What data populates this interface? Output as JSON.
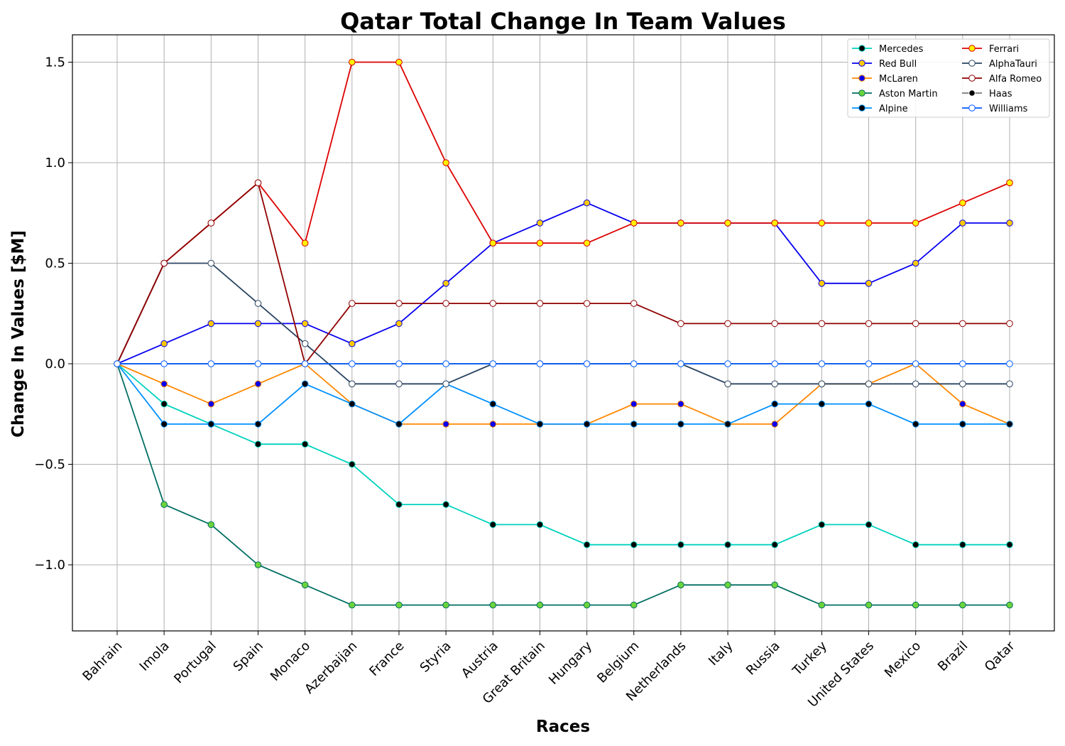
{
  "chart_data": {
    "type": "line",
    "title": "Qatar Total Change In Team Values",
    "xlabel": "Races",
    "ylabel": "Change In Values [$M]",
    "ylim": [
      -1.32,
      1.63
    ],
    "yticks": [
      -1.0,
      -0.5,
      0.0,
      0.5,
      1.0,
      1.5
    ],
    "ytick_labels": [
      "−1.0",
      "−0.5",
      "0.0",
      "0.5",
      "1.0",
      "1.5"
    ],
    "grid": true,
    "legend_position": "top-right",
    "categories": [
      "Bahrain",
      "Imola",
      "Portugal",
      "Spain",
      "Monaco",
      "Azerbaijan",
      "France",
      "Styria",
      "Austria",
      "Great Britain",
      "Hungary",
      "Belgium",
      "Netherlands",
      "Italy",
      "Russia",
      "Turkey",
      "United States",
      "Mexico",
      "Brazil",
      "Qatar"
    ],
    "series": [
      {
        "name": "Mercedes",
        "color": "#00d2be",
        "marker_fill": "#000000",
        "marker_edge": "#00d2be",
        "values": [
          0,
          -0.2,
          -0.3,
          -0.4,
          -0.4,
          -0.5,
          -0.7,
          -0.7,
          -0.8,
          -0.8,
          -0.9,
          -0.9,
          -0.9,
          -0.9,
          -0.9,
          -0.8,
          -0.8,
          -0.9,
          -0.9,
          -0.9
        ]
      },
      {
        "name": "Red Bull",
        "color": "#0600ef",
        "marker_fill": "#ffc906",
        "marker_edge": "#0600ef",
        "values": [
          0,
          0.1,
          0.2,
          0.2,
          0.2,
          0.1,
          0.2,
          0.4,
          0.6,
          0.7,
          0.8,
          0.7,
          0.7,
          0.7,
          0.7,
          0.4,
          0.4,
          0.5,
          0.7,
          0.7
        ]
      },
      {
        "name": "McLaren",
        "color": "#ff8700",
        "marker_fill": "#0600ef",
        "marker_edge": "#ff8700",
        "values": [
          0,
          -0.1,
          -0.2,
          -0.1,
          0.0,
          -0.2,
          -0.3,
          -0.3,
          -0.3,
          -0.3,
          -0.3,
          -0.2,
          -0.2,
          -0.3,
          -0.3,
          -0.1,
          -0.1,
          0.0,
          -0.2,
          -0.3
        ]
      },
      {
        "name": "Aston Martin",
        "color": "#006f62",
        "marker_fill": "#6cd33b",
        "marker_edge": "#006f62",
        "values": [
          0,
          -0.7,
          -0.8,
          -1.0,
          -1.1,
          -1.2,
          -1.2,
          -1.2,
          -1.2,
          -1.2,
          -1.2,
          -1.2,
          -1.1,
          -1.1,
          -1.1,
          -1.2,
          -1.2,
          -1.2,
          -1.2,
          -1.2
        ]
      },
      {
        "name": "Alpine",
        "color": "#0090ff",
        "marker_fill": "#000000",
        "marker_edge": "#0090ff",
        "values": [
          0,
          -0.3,
          -0.3,
          -0.3,
          -0.1,
          -0.2,
          -0.3,
          -0.1,
          -0.2,
          -0.3,
          -0.3,
          -0.3,
          -0.3,
          -0.3,
          -0.2,
          -0.2,
          -0.2,
          -0.3,
          -0.3,
          -0.3
        ]
      },
      {
        "name": "Ferrari",
        "color": "#dc0000",
        "marker_fill": "#fff200",
        "marker_edge": "#dc0000",
        "values": [
          0,
          0.5,
          0.7,
          0.9,
          0.6,
          1.5,
          1.5,
          1.0,
          0.6,
          0.6,
          0.6,
          0.7,
          0.7,
          0.7,
          0.7,
          0.7,
          0.7,
          0.7,
          0.8,
          0.9
        ]
      },
      {
        "name": "AlphaTauri",
        "color": "#2b4562",
        "marker_fill": "#ffffff",
        "marker_edge": "#2b4562",
        "values": [
          0,
          0.5,
          0.5,
          0.3,
          0.1,
          -0.1,
          -0.1,
          -0.1,
          0.0,
          0.0,
          0.0,
          0.0,
          0.0,
          -0.1,
          -0.1,
          -0.1,
          -0.1,
          -0.1,
          -0.1,
          -0.1
        ]
      },
      {
        "name": "Alfa Romeo",
        "color": "#900000",
        "marker_fill": "#ffffff",
        "marker_edge": "#900000",
        "values": [
          0,
          0.5,
          0.7,
          0.9,
          0.0,
          0.3,
          0.3,
          0.3,
          0.3,
          0.3,
          0.3,
          0.3,
          0.2,
          0.2,
          0.2,
          0.2,
          0.2,
          0.2,
          0.2,
          0.2
        ]
      },
      {
        "name": "Haas",
        "color": "#787878",
        "marker_fill": "#000000",
        "marker_edge": "#ffffff",
        "values": [
          0,
          0,
          0,
          0,
          0,
          0,
          0,
          0,
          0,
          0,
          0,
          0,
          0,
          0,
          0,
          0,
          0,
          0,
          0,
          0
        ]
      },
      {
        "name": "Williams",
        "color": "#005aff",
        "marker_fill": "#ffffff",
        "marker_edge": "#005aff",
        "values": [
          0,
          0,
          0,
          0,
          0,
          0,
          0,
          0,
          0,
          0,
          0,
          0,
          0,
          0,
          0,
          0,
          0,
          0,
          0,
          0
        ]
      }
    ]
  }
}
